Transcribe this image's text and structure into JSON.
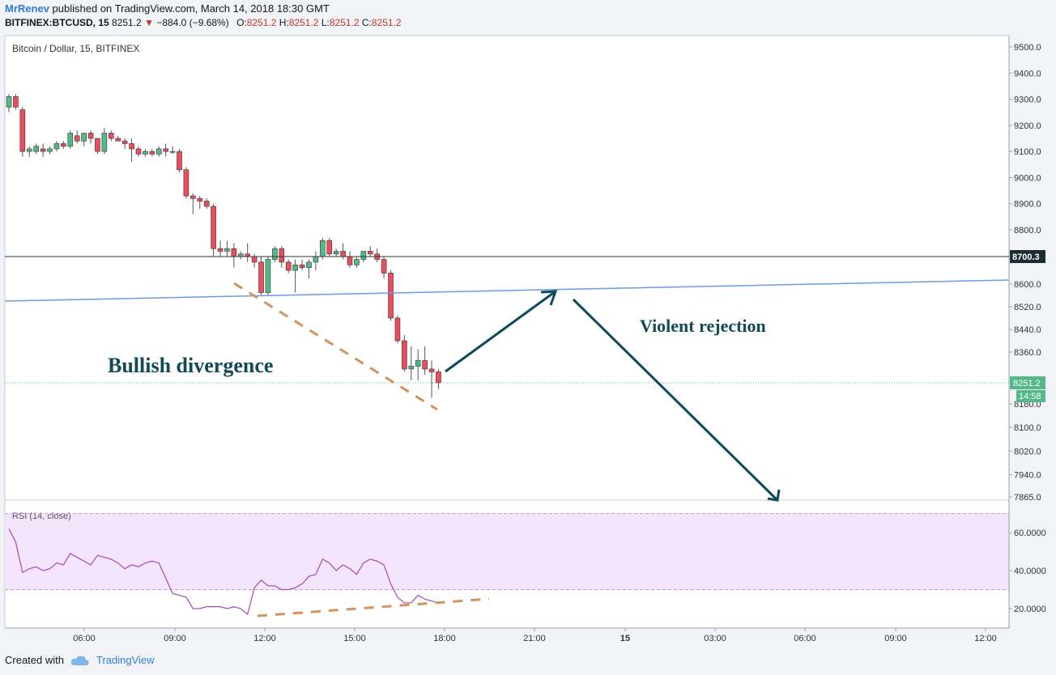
{
  "header": {
    "author": "MrRenev",
    "published": "published on TradingView.com, March 14, 2018 18:30 GMT",
    "symbol": "BITFINEX:BTCUSD, 15",
    "last": "8251.2",
    "arrow": "▼",
    "change": "−884.0 (−9.68%)",
    "o_label": "O:",
    "o_value": "8251.2",
    "h_label": "H:",
    "h_value": "8251.2",
    "l_label": "L:",
    "l_value": "8251.2",
    "c_label": "C:",
    "c_value": "8251.2"
  },
  "footer": {
    "created_with": "Created with",
    "brand": "TradingView"
  },
  "chart_data": {
    "type": "candlestick",
    "title": "Bitcoin / Dollar, 15, BITFINEX",
    "price_axis": {
      "ticks": [
        9500,
        9400,
        9300,
        9200,
        9100,
        9000,
        8900,
        8800,
        8700.3,
        8600,
        8520,
        8440,
        8360,
        8251.2,
        8180,
        8100,
        8020,
        7940,
        7865
      ],
      "tick_labels": [
        "9500.0",
        "9400.0",
        "9300.0",
        "9200.0",
        "9100.0",
        "9000.0",
        "8900.0",
        "8800.0",
        "8700.3",
        "8600.0",
        "8520.0",
        "8440.0",
        "8360.0",
        "8251.2",
        "8180.0",
        "8100.0",
        "8020.0",
        "7940.0",
        "7865.0"
      ]
    },
    "time_axis": {
      "labels": [
        "06:00",
        "09:00",
        "12:00",
        "15:00",
        "18:00",
        "21:00",
        "15",
        "03:00",
        "06:00",
        "09:00",
        "12:00"
      ]
    },
    "candles": [
      [
        9270,
        9320,
        9250,
        9310
      ],
      [
        9310,
        9320,
        9260,
        9270
      ],
      [
        9260,
        9270,
        9080,
        9100
      ],
      [
        9100,
        9120,
        9080,
        9110
      ],
      [
        9100,
        9130,
        9090,
        9120
      ],
      [
        9110,
        9130,
        9080,
        9100
      ],
      [
        9100,
        9120,
        9090,
        9110
      ],
      [
        9110,
        9140,
        9100,
        9130
      ],
      [
        9130,
        9140,
        9110,
        9120
      ],
      [
        9120,
        9180,
        9110,
        9170
      ],
      [
        9160,
        9180,
        9130,
        9140
      ],
      [
        9140,
        9170,
        9120,
        9170
      ],
      [
        9170,
        9180,
        9130,
        9150
      ],
      [
        9150,
        9150,
        9090,
        9100
      ],
      [
        9100,
        9190,
        9090,
        9170
      ],
      [
        9170,
        9180,
        9140,
        9150
      ],
      [
        9150,
        9160,
        9140,
        9140
      ],
      [
        9140,
        9150,
        9110,
        9130
      ],
      [
        9130,
        9150,
        9060,
        9110
      ],
      [
        9110,
        9120,
        9080,
        9090
      ],
      [
        9090,
        9110,
        9080,
        9100
      ],
      [
        9100,
        9110,
        9080,
        9090
      ],
      [
        9090,
        9120,
        9080,
        9110
      ],
      [
        9110,
        9130,
        9080,
        9100
      ],
      [
        9100,
        9120,
        9090,
        9100
      ],
      [
        9100,
        9110,
        9020,
        9030
      ],
      [
        9030,
        9040,
        8920,
        8930
      ],
      [
        8930,
        8940,
        8860,
        8920
      ],
      [
        8920,
        8930,
        8880,
        8910
      ],
      [
        8910,
        8920,
        8880,
        8890
      ],
      [
        8890,
        8900,
        8700,
        8730
      ],
      [
        8730,
        8760,
        8700,
        8720
      ],
      [
        8720,
        8760,
        8700,
        8730
      ],
      [
        8730,
        8750,
        8660,
        8700
      ],
      [
        8700,
        8720,
        8690,
        8710
      ],
      [
        8710,
        8750,
        8680,
        8700
      ],
      [
        8700,
        8710,
        8660,
        8680
      ],
      [
        8680,
        8700,
        8560,
        8570
      ],
      [
        8570,
        8700,
        8560,
        8690
      ],
      [
        8690,
        8740,
        8680,
        8730
      ],
      [
        8730,
        8740,
        8660,
        8680
      ],
      [
        8680,
        8690,
        8640,
        8650
      ],
      [
        8650,
        8690,
        8570,
        8670
      ],
      [
        8670,
        8690,
        8650,
        8660
      ],
      [
        8660,
        8690,
        8620,
        8680
      ],
      [
        8680,
        8720,
        8650,
        8700
      ],
      [
        8700,
        8770,
        8690,
        8760
      ],
      [
        8760,
        8770,
        8700,
        8710
      ],
      [
        8710,
        8730,
        8700,
        8720
      ],
      [
        8720,
        8750,
        8690,
        8700
      ],
      [
        8700,
        8720,
        8660,
        8670
      ],
      [
        8670,
        8700,
        8660,
        8690
      ],
      [
        8690,
        8720,
        8680,
        8720
      ],
      [
        8720,
        8740,
        8700,
        8710
      ],
      [
        8710,
        8730,
        8680,
        8690
      ],
      [
        8690,
        8700,
        8620,
        8640
      ],
      [
        8640,
        8650,
        8470,
        8480
      ],
      [
        8480,
        8490,
        8390,
        8400
      ],
      [
        8400,
        8420,
        8290,
        8300
      ],
      [
        8300,
        8380,
        8260,
        8310
      ],
      [
        8310,
        8370,
        8260,
        8330
      ],
      [
        8330,
        8380,
        8280,
        8300
      ],
      [
        8300,
        8330,
        8200,
        8290
      ],
      [
        8290,
        8300,
        8230,
        8251.2
      ]
    ],
    "horizontal_lines": [
      {
        "value": 8700.3,
        "label": "8700.3"
      }
    ],
    "last_price": {
      "value": 8251.2,
      "label": "8251.2",
      "countdown": "14:58"
    },
    "annotations": [
      "Bullish divergence",
      "Violent rejection"
    ],
    "rsi": {
      "label": "RSI (14, close)",
      "ticks": [
        60,
        40,
        20
      ],
      "tick_labels": [
        "60.0000",
        "40.0000",
        "20.0000"
      ],
      "band": [
        30,
        70
      ],
      "values": [
        62,
        55,
        39,
        41,
        42,
        40,
        41,
        44,
        43,
        49,
        47,
        45,
        43,
        48,
        47,
        46,
        44,
        41,
        43,
        42,
        44,
        45,
        44,
        36,
        28,
        27,
        26,
        20,
        20,
        21,
        21,
        21,
        20,
        21,
        20,
        17,
        31,
        35,
        32,
        32,
        30,
        30,
        31,
        33,
        37,
        38,
        46,
        44,
        40,
        43,
        41,
        38,
        44,
        46,
        45,
        43,
        33,
        26,
        23,
        23,
        27,
        25,
        24,
        23
      ]
    },
    "colors": {
      "up": "#53b987",
      "down": "#eb4d5c",
      "rsi": "#a64ab8",
      "trend": "#6e9ae6",
      "arrow": "#0f4a5a",
      "dash": "#d4935a",
      "band": "#f3e5fb"
    }
  }
}
